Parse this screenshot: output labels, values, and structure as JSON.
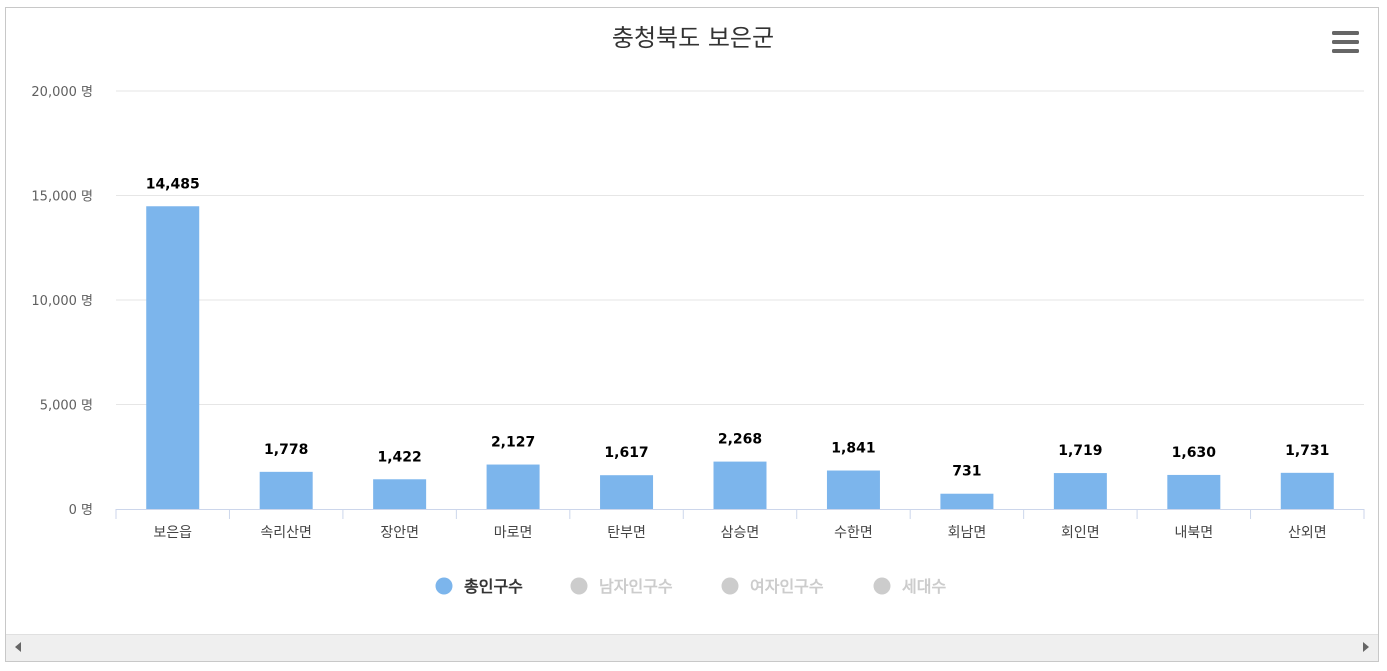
{
  "chart_data": {
    "type": "bar",
    "title": "충청북도 보은군",
    "categories": [
      "보은읍",
      "속리산면",
      "장안면",
      "마로면",
      "탄부면",
      "삼승면",
      "수한면",
      "회남면",
      "회인면",
      "내북면",
      "산외면"
    ],
    "series": [
      {
        "name": "총인구수",
        "values": [
          14485,
          1778,
          1422,
          2127,
          1617,
          2268,
          1841,
          731,
          1719,
          1630,
          1731
        ],
        "visible": true,
        "color": "#7cb5ec"
      }
    ],
    "data_labels": [
      "14,485",
      "1,778",
      "1,422",
      "2,127",
      "1,617",
      "2,268",
      "1,841",
      "731",
      "1,719",
      "1,630",
      "1,731"
    ],
    "yticks": [
      0,
      5000,
      10000,
      15000,
      20000
    ],
    "ytick_labels": [
      "0 명",
      "5,000 명",
      "10,000 명",
      "15,000 명",
      "20,000 명"
    ],
    "ylim": [
      0,
      20000
    ],
    "grid": true,
    "legend_position": "bottom-center",
    "legend": [
      {
        "label": "총인구수",
        "active": true,
        "color": "#7cb5ec"
      },
      {
        "label": "남자인구수",
        "active": false,
        "color": "#cccccc"
      },
      {
        "label": "여자인구수",
        "active": false,
        "color": "#cccccc"
      },
      {
        "label": "세대수",
        "active": false,
        "color": "#cccccc"
      }
    ]
  },
  "toolbar": {
    "menu_icon": "hamburger-menu-icon"
  },
  "scrollbar": {
    "left_icon": "arrow-left-icon",
    "right_icon": "arrow-right-icon"
  }
}
